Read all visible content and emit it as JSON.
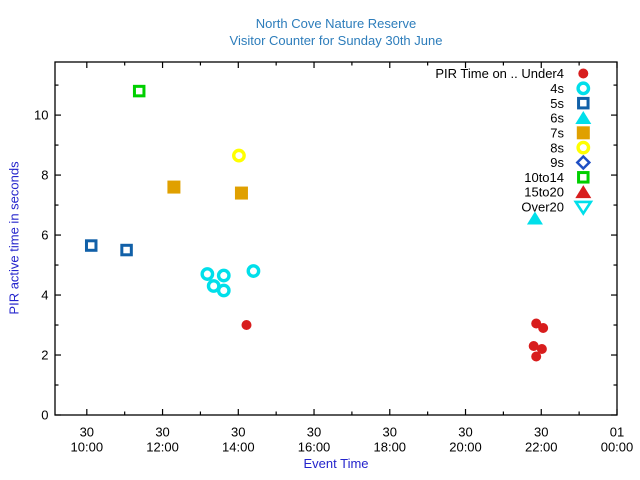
{
  "chart_data": {
    "type": "scatter",
    "title": [
      "North Cove Nature Reserve",
      "Visitor Counter for Sunday 30th June"
    ],
    "xlabel": "Event Time",
    "ylabel": "PIR active time in seconds",
    "xlim_hours": [
      9.16,
      24
    ],
    "ylim": [
      0,
      11.77
    ],
    "grid": false,
    "legend_position": "top-right-inside",
    "colors": {
      "title": "#2d7dbb",
      "axis_label": "#2424cc",
      "tick_label": "#000000",
      "frame": "#000000"
    },
    "x_axis": {
      "major_ticks": [
        {
          "hour": 10,
          "day": "30",
          "time": "10:00"
        },
        {
          "hour": 12,
          "day": "30",
          "time": "12:00"
        },
        {
          "hour": 14,
          "day": "30",
          "time": "14:00"
        },
        {
          "hour": 16,
          "day": "30",
          "time": "16:00"
        },
        {
          "hour": 18,
          "day": "30",
          "time": "18:00"
        },
        {
          "hour": 20,
          "day": "30",
          "time": "20:00"
        },
        {
          "hour": 22,
          "day": "30",
          "time": "22:00"
        },
        {
          "hour": 24,
          "day": "01",
          "time": "00:00"
        }
      ],
      "minor_tick_hours": [
        11,
        13,
        15,
        17,
        19,
        21,
        23
      ]
    },
    "y_axis": {
      "major_ticks": [
        0,
        2,
        4,
        6,
        8,
        10
      ],
      "minor_ticks": [
        1,
        3,
        5,
        7,
        9,
        11
      ]
    },
    "series": [
      {
        "name": "Under4",
        "legend_label": "PIR Time on .. Under4",
        "marker": "circle-filled",
        "color": "#d81d1d",
        "points": [
          {
            "t": "14:13",
            "y": 3.0
          },
          {
            "t": "21:52",
            "y": 3.05
          },
          {
            "t": "22:03",
            "y": 2.9
          },
          {
            "t": "21:48",
            "y": 2.3
          },
          {
            "t": "22:01",
            "y": 2.2
          },
          {
            "t": "21:52",
            "y": 1.95
          }
        ]
      },
      {
        "name": "4s",
        "legend_label": "4s",
        "marker": "circle-open",
        "color": "#00dfea",
        "points": [
          {
            "t": "13:11",
            "y": 4.7
          },
          {
            "t": "13:37",
            "y": 4.65
          },
          {
            "t": "13:21",
            "y": 4.3
          },
          {
            "t": "13:37",
            "y": 4.15
          },
          {
            "t": "14:24",
            "y": 4.8
          }
        ]
      },
      {
        "name": "5s",
        "legend_label": "5s",
        "marker": "square-open",
        "color": "#1160a8",
        "points": [
          {
            "t": "10:07",
            "y": 5.65
          },
          {
            "t": "11:03",
            "y": 5.5
          }
        ]
      },
      {
        "name": "6s",
        "legend_label": "6s",
        "marker": "triangle-up-filled",
        "color": "#00dfea",
        "points": [
          {
            "t": "21:50",
            "y": 6.55
          }
        ]
      },
      {
        "name": "7s",
        "legend_label": "7s",
        "marker": "square-filled",
        "color": "#e0a000",
        "points": [
          {
            "t": "12:18",
            "y": 7.6
          },
          {
            "t": "14:05",
            "y": 7.4
          }
        ]
      },
      {
        "name": "8s",
        "legend_label": "8s",
        "marker": "circle-open",
        "color": "#ffff00",
        "points": [
          {
            "t": "14:01",
            "y": 8.65
          }
        ]
      },
      {
        "name": "9s",
        "legend_label": "9s",
        "marker": "diamond-open",
        "color": "#1f4fc4",
        "points": []
      },
      {
        "name": "10to14",
        "legend_label": "10to14",
        "marker": "square-open",
        "color": "#00cf00",
        "points": [
          {
            "t": "11:23",
            "y": 10.8
          }
        ]
      },
      {
        "name": "15to20",
        "legend_label": "15to20",
        "marker": "triangle-up-filled",
        "color": "#d81d1d",
        "points": []
      },
      {
        "name": "Over20",
        "legend_label": "Over20",
        "marker": "triangle-down-open",
        "color": "#00dfea",
        "points": []
      }
    ]
  }
}
